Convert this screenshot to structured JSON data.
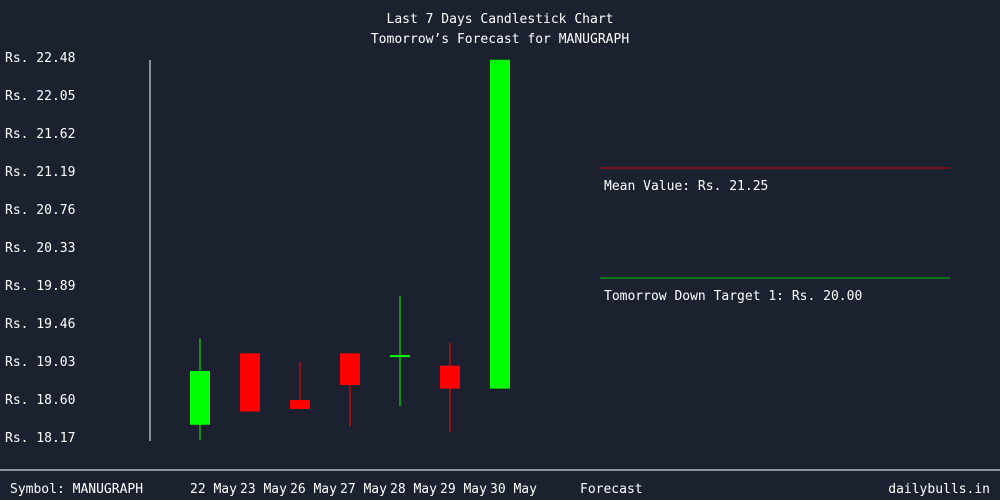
{
  "chart_data": {
    "type": "candlestick",
    "title": "Last 7 Days Candlestick Chart",
    "subtitle": "Tomorrow’s Forecast for MANUGRAPH",
    "ylim": [
      18.17,
      22.48
    ],
    "y_ticks": [
      "Rs. 22.48",
      "Rs. 22.05",
      "Rs. 21.62",
      "Rs. 21.19",
      "Rs. 20.76",
      "Rs. 20.33",
      "Rs. 19.89",
      "Rs. 19.46",
      "Rs. 19.03",
      "Rs. 18.60",
      "Rs. 18.17"
    ],
    "categories": [
      "22 May",
      "23 May",
      "26 May",
      "27 May",
      "28 May",
      "29 May",
      "30 May"
    ],
    "candles": [
      {
        "date": "22 May",
        "open": 18.32,
        "high": 19.3,
        "low": 18.15,
        "close": 18.93
      },
      {
        "date": "23 May",
        "open": 19.13,
        "high": 19.13,
        "low": 18.48,
        "close": 18.47
      },
      {
        "date": "26 May",
        "open": 18.6,
        "high": 19.03,
        "low": 18.5,
        "close": 18.5
      },
      {
        "date": "27 May",
        "open": 19.13,
        "high": 19.13,
        "low": 18.3,
        "close": 18.77
      },
      {
        "date": "28 May",
        "open": 19.1,
        "high": 19.78,
        "low": 18.53,
        "close": 19.11
      },
      {
        "date": "29 May",
        "open": 18.99,
        "high": 19.25,
        "low": 18.24,
        "close": 18.73
      },
      {
        "date": "30 May",
        "open": 18.73,
        "high": 22.46,
        "low": 18.73,
        "close": 22.46
      }
    ],
    "forecast_label": "Forecast",
    "annotations": [
      {
        "label": "Mean Value: Rs. 21.25",
        "color": "#cc0000"
      },
      {
        "label": "Tomorrow Down Target 1: Rs. 20.00",
        "color": "#00cc00"
      }
    ],
    "up_color": "#00ff00",
    "down_color": "#ff0000"
  },
  "footer": {
    "symbol_label": "Symbol: MANUGRAPH",
    "site": "dailybulls.in"
  }
}
